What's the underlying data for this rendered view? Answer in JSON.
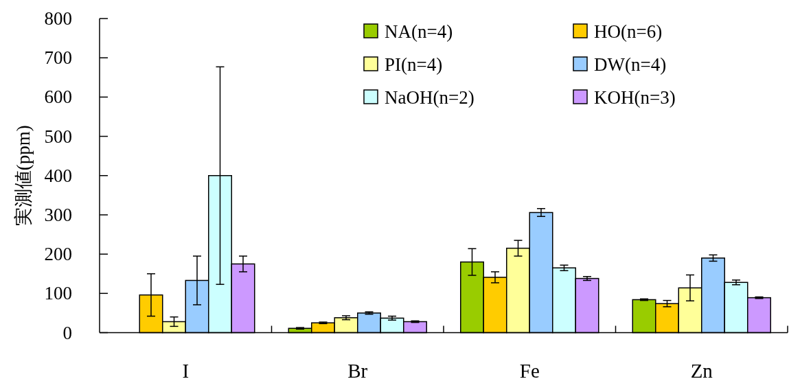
{
  "chart_data": {
    "type": "bar",
    "ylabel": "実測値(ppm)",
    "categories": [
      "I",
      "Br",
      "Fe",
      "Zn"
    ],
    "ylim": [
      0,
      800
    ],
    "yticks": [
      0,
      100,
      200,
      300,
      400,
      500,
      600,
      700,
      800
    ],
    "legend": "top right",
    "grid": false,
    "series": [
      {
        "name": "NA(n=4)",
        "color": "#99cc00",
        "values": [
          0,
          11,
          180,
          84
        ],
        "errors": [
          null,
          2,
          34,
          2
        ]
      },
      {
        "name": "HO(n=6)",
        "color": "#ffcc00",
        "values": [
          96,
          25,
          141,
          74
        ],
        "errors": [
          54,
          2,
          14,
          8
        ]
      },
      {
        "name": "PI(n=4)",
        "color": "#ffff99",
        "values": [
          28,
          38,
          215,
          114
        ],
        "errors": [
          12,
          5,
          20,
          33
        ]
      },
      {
        "name": "DW(n=4)",
        "color": "#99ccff",
        "values": [
          133,
          50,
          306,
          190
        ],
        "errors": [
          62,
          3,
          10,
          8
        ]
      },
      {
        "name": "NaOH(n=2)",
        "color": "#ccffff",
        "values": [
          400,
          37,
          165,
          128
        ],
        "errors": [
          277,
          5,
          7,
          6
        ]
      },
      {
        "name": "KOH(n=3)",
        "color": "#cc99ff",
        "values": [
          175,
          28,
          138,
          89
        ],
        "errors": [
          20,
          2,
          5,
          2
        ]
      }
    ]
  }
}
